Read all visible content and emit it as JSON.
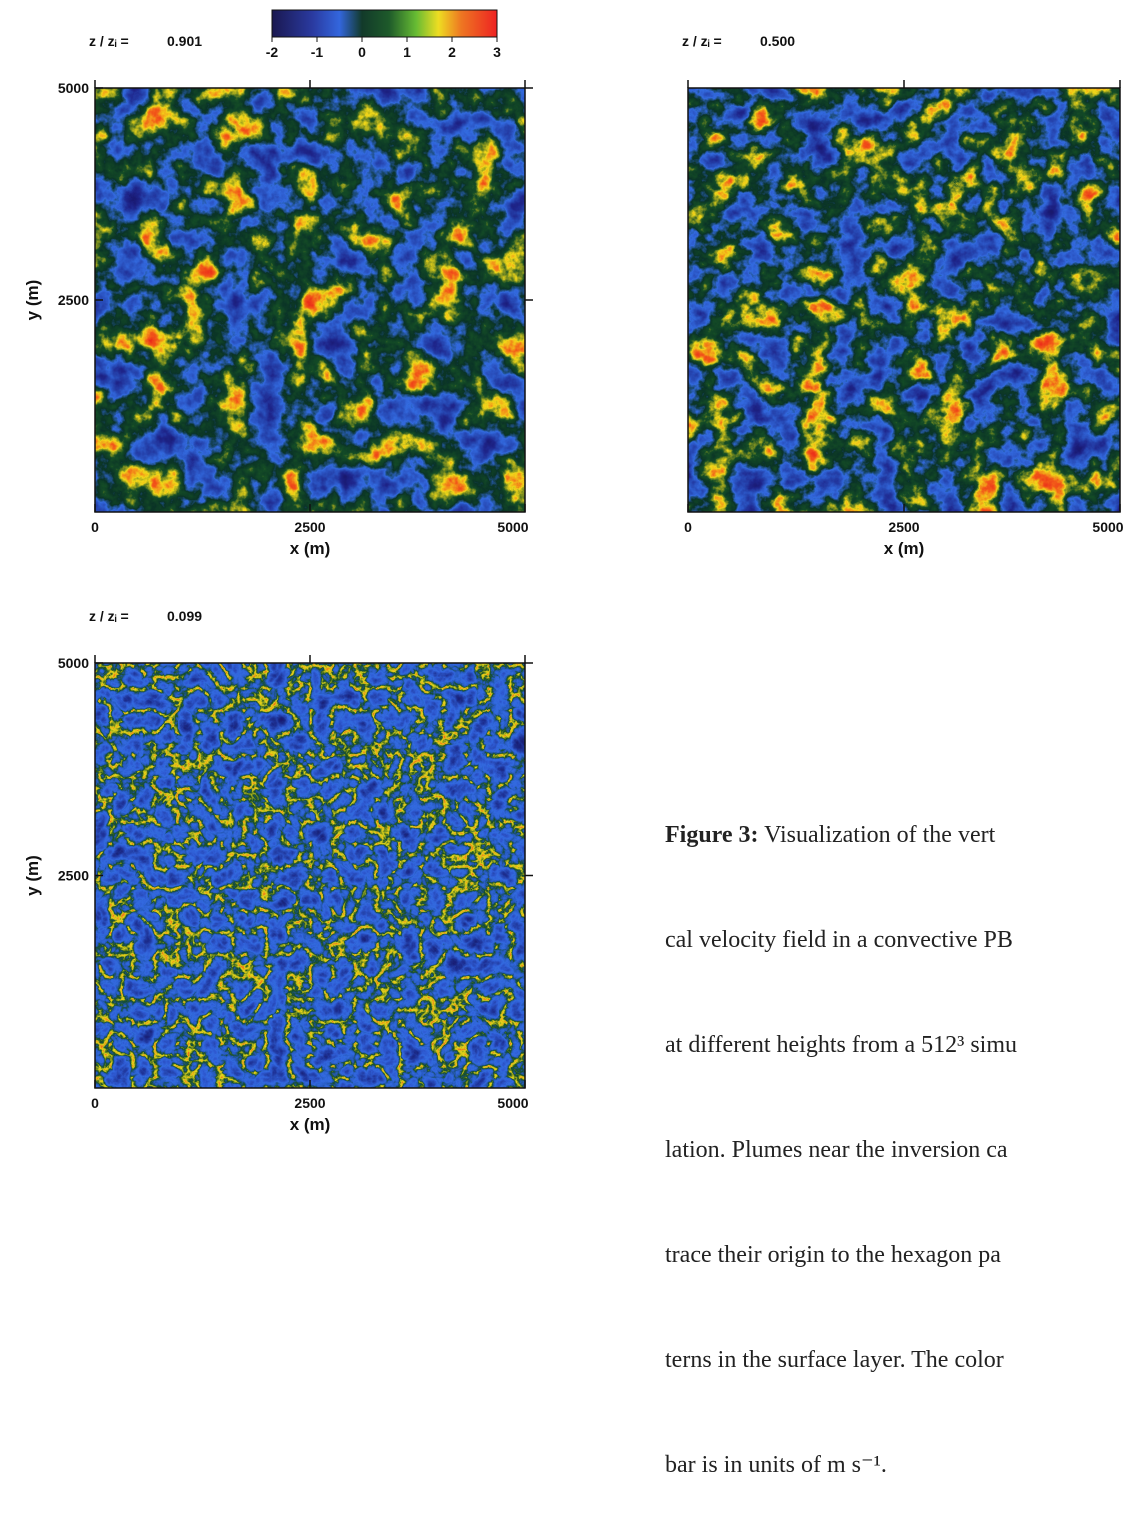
{
  "colorbar": {
    "lim": [
      -2,
      3
    ],
    "ticks": [
      -2,
      -1,
      0,
      1,
      2,
      3
    ]
  },
  "panels": [
    {
      "label": "z / zᵢ =",
      "height": "0.901",
      "xlim": [
        0,
        5000
      ],
      "ylim": [
        0,
        5000
      ],
      "xticks": [
        0,
        2500,
        5000
      ],
      "yticks": [
        2500,
        5000
      ],
      "xlabel": "x (m)",
      "ylabel": "y (m)"
    },
    {
      "label": "z / zᵢ =",
      "height": "0.500",
      "xlim": [
        0,
        5000
      ],
      "xticks": [
        0,
        2500,
        5000
      ],
      "xlabel": "x (m)"
    },
    {
      "label": "z / zᵢ =",
      "height": "0.099",
      "xlim": [
        0,
        5000
      ],
      "ylim": [
        0,
        5000
      ],
      "xticks": [
        0,
        2500,
        5000
      ],
      "yticks": [
        2500,
        5000
      ],
      "xlabel": "x (m)",
      "ylabel": "y (m)"
    }
  ],
  "caption": {
    "label": "Figure 3:",
    "lines": [
      " Visualization of the vert",
      "cal velocity field in a convective PB",
      "at different heights from a 512³ simu",
      "lation. Plumes near the inversion ca",
      "trace their origin to the hexagon pa",
      "terns in the surface layer. The color",
      "bar is in units of m s⁻¹."
    ]
  }
}
